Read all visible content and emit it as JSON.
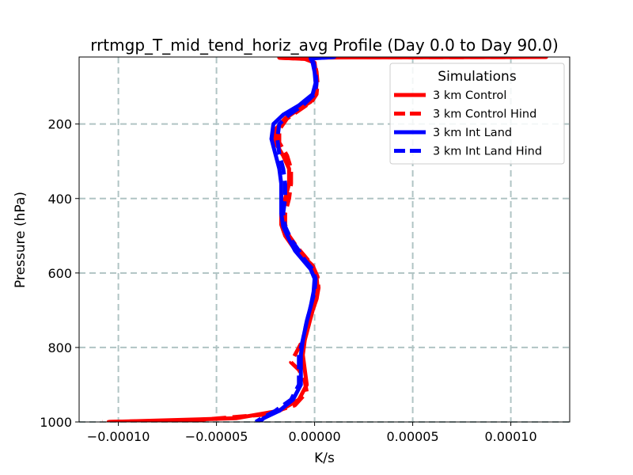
{
  "chart_data": {
    "type": "line",
    "title": "rrtmgp_T_mid_tend_horiz_avg Profile (Day 0.0 to Day 90.0)",
    "xlabel": "K/s",
    "ylabel": "Pressure (hPa)",
    "xlim": [
      -0.00012,
      0.00013
    ],
    "ylim": [
      1000,
      20
    ],
    "y_inverted": true,
    "grid": true,
    "xticks": [
      -0.0001,
      -5e-05,
      0.0,
      5e-05,
      0.0001
    ],
    "xtick_labels": [
      "−0.00010",
      "−0.00005",
      "0.00000",
      "0.00005",
      "0.00010"
    ],
    "yticks": [
      200,
      400,
      600,
      800,
      1000
    ],
    "ytick_labels": [
      "200",
      "400",
      "600",
      "800",
      "1000"
    ],
    "legend": {
      "title": "Simulations",
      "position": "top-right",
      "entries": [
        "3 km Control",
        "3 km Control Hind",
        "3 km Int Land",
        "3 km Int Land Hind"
      ]
    },
    "series": [
      {
        "name": "3 km Control",
        "color": "#ff0000",
        "style": "solid",
        "points": [
          [
            0.000118,
            20
          ],
          [
            2e-05,
            21
          ],
          [
            -1.8e-05,
            22
          ],
          [
            -5e-06,
            25
          ],
          [
            0.0,
            35
          ],
          [
            5e-07,
            60
          ],
          [
            1e-06,
            90
          ],
          [
            5e-07,
            120
          ],
          [
            -2e-06,
            140
          ],
          [
            -8e-06,
            160
          ],
          [
            -1.5e-05,
            185
          ],
          [
            -2e-05,
            215
          ],
          [
            -2e-05,
            250
          ],
          [
            -1.6e-05,
            285
          ],
          [
            -1.3e-05,
            320
          ],
          [
            -1.3e-05,
            360
          ],
          [
            -1.5e-05,
            400
          ],
          [
            -1.7e-05,
            440
          ],
          [
            -1.7e-05,
            470
          ],
          [
            -1.5e-05,
            500
          ],
          [
            -1.1e-05,
            530
          ],
          [
            -6e-06,
            555
          ],
          [
            -1e-06,
            580
          ],
          [
            1e-06,
            610
          ],
          [
            1.5e-06,
            640
          ],
          [
            1e-06,
            670
          ],
          [
            -1e-06,
            700
          ],
          [
            -3e-06,
            740
          ],
          [
            -5e-06,
            780
          ],
          [
            -6e-06,
            820
          ],
          [
            -5e-06,
            860
          ],
          [
            -4e-06,
            900
          ],
          [
            -8e-06,
            940
          ],
          [
            -1.8e-05,
            970
          ],
          [
            -4e-05,
            990
          ],
          [
            -0.000105,
            1000
          ]
        ]
      },
      {
        "name": "3 km Control Hind",
        "color": "#ff0000",
        "style": "dashed",
        "points": [
          [
            0.000118,
            20
          ],
          [
            2e-05,
            21
          ],
          [
            -1.8e-05,
            22
          ],
          [
            -5e-06,
            25
          ],
          [
            0.0,
            35
          ],
          [
            1e-06,
            60
          ],
          [
            1.5e-06,
            90
          ],
          [
            1e-06,
            120
          ],
          [
            -1.5e-06,
            140
          ],
          [
            -7e-06,
            160
          ],
          [
            -1.4e-05,
            185
          ],
          [
            -1.8e-05,
            215
          ],
          [
            -1.8e-05,
            250
          ],
          [
            -1.4e-05,
            285
          ],
          [
            -1.2e-05,
            320
          ],
          [
            -1.2e-05,
            360
          ],
          [
            -1.3e-05,
            400
          ],
          [
            -1.5e-05,
            440
          ],
          [
            -1.5e-05,
            470
          ],
          [
            -1.3e-05,
            500
          ],
          [
            -9e-06,
            530
          ],
          [
            -5e-06,
            555
          ],
          [
            -1e-06,
            580
          ],
          [
            1.5e-06,
            610
          ],
          [
            2e-06,
            640
          ],
          [
            1e-06,
            670
          ],
          [
            -1e-06,
            700
          ],
          [
            -3e-06,
            740
          ],
          [
            -6e-06,
            780
          ],
          [
            -9e-06,
            810
          ],
          [
            -1.2e-05,
            840
          ],
          [
            -8e-06,
            860
          ],
          [
            -5e-06,
            890
          ],
          [
            -4e-06,
            920
          ],
          [
            -1e-05,
            955
          ],
          [
            -2.5e-05,
            980
          ],
          [
            -6e-05,
            995
          ],
          [
            -0.000108,
            1000
          ]
        ]
      },
      {
        "name": "3 km Int Land",
        "color": "#0000ff",
        "style": "solid",
        "points": [
          [
            1e-05,
            20
          ],
          [
            -2e-06,
            24
          ],
          [
            -1e-06,
            35
          ],
          [
            0.0,
            60
          ],
          [
            5e-07,
            90
          ],
          [
            -1e-06,
            120
          ],
          [
            -8e-06,
            150
          ],
          [
            -1.6e-05,
            175
          ],
          [
            -2.1e-05,
            200
          ],
          [
            -2.2e-05,
            240
          ],
          [
            -2e-05,
            280
          ],
          [
            -1.8e-05,
            320
          ],
          [
            -1.7e-05,
            360
          ],
          [
            -1.7e-05,
            400
          ],
          [
            -1.7e-05,
            440
          ],
          [
            -1.6e-05,
            475
          ],
          [
            -1.3e-05,
            510
          ],
          [
            -1e-05,
            540
          ],
          [
            -6e-06,
            565
          ],
          [
            -2e-06,
            590
          ],
          [
            0.0,
            615
          ],
          [
            -5e-07,
            650
          ],
          [
            -2e-06,
            690
          ],
          [
            -4e-06,
            730
          ],
          [
            -6e-06,
            780
          ],
          [
            -7e-06,
            820
          ],
          [
            -7e-06,
            860
          ],
          [
            -7e-06,
            900
          ],
          [
            -1.1e-05,
            940
          ],
          [
            -1.8e-05,
            970
          ],
          [
            -2.6e-05,
            990
          ],
          [
            -2.8e-05,
            1000
          ]
        ]
      },
      {
        "name": "3 km Int Land Hind",
        "color": "#0000ff",
        "style": "dashed",
        "points": [
          [
            1e-05,
            20
          ],
          [
            -2e-06,
            24
          ],
          [
            -5e-07,
            35
          ],
          [
            5e-07,
            60
          ],
          [
            1e-06,
            90
          ],
          [
            0.0,
            120
          ],
          [
            -6e-06,
            150
          ],
          [
            -1.3e-05,
            175
          ],
          [
            -1.8e-05,
            200
          ],
          [
            -1.9e-05,
            240
          ],
          [
            -1.8e-05,
            280
          ],
          [
            -1.6e-05,
            320
          ],
          [
            -1.5e-05,
            360
          ],
          [
            -1.5e-05,
            400
          ],
          [
            -1.6e-05,
            440
          ],
          [
            -1.5e-05,
            475
          ],
          [
            -1.2e-05,
            510
          ],
          [
            -8e-06,
            540
          ],
          [
            -5e-06,
            565
          ],
          [
            -1e-06,
            590
          ],
          [
            5e-07,
            615
          ],
          [
            0.0,
            650
          ],
          [
            -2e-06,
            690
          ],
          [
            -4e-06,
            730
          ],
          [
            -6e-06,
            780
          ],
          [
            -8e-06,
            820
          ],
          [
            -8e-06,
            860
          ],
          [
            -8e-06,
            900
          ],
          [
            -1.2e-05,
            940
          ],
          [
            -2e-05,
            970
          ],
          [
            -2.7e-05,
            990
          ],
          [
            -3e-05,
            1000
          ]
        ]
      }
    ]
  }
}
